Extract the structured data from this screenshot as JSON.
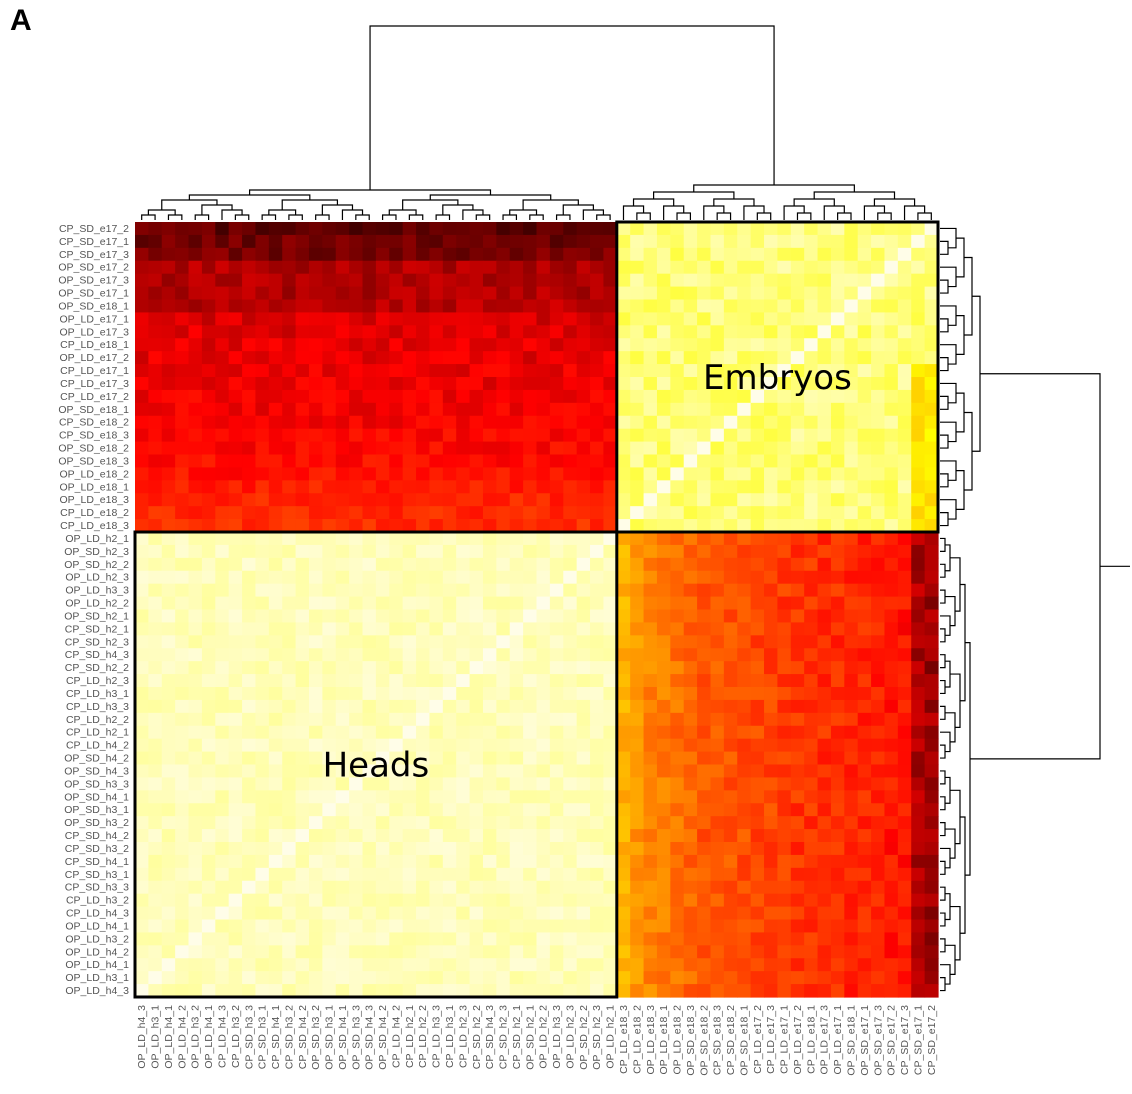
{
  "panel_letter": "A",
  "chart_data": {
    "type": "heatmap",
    "title": "",
    "row_labels": [
      "CP_SD_e17_2",
      "CP_SD_e17_1",
      "CP_SD_e17_3",
      "OP_SD_e17_2",
      "OP_SD_e17_3",
      "OP_SD_e17_1",
      "OP_SD_e18_1",
      "OP_LD_e17_1",
      "OP_LD_e17_3",
      "CP_LD_e18_1",
      "OP_LD_e17_2",
      "CP_LD_e17_1",
      "CP_LD_e17_3",
      "CP_LD_e17_2",
      "OP_SD_e18_1",
      "CP_SD_e18_2",
      "CP_SD_e18_3",
      "OP_SD_e18_2",
      "OP_SD_e18_3",
      "OP_LD_e18_2",
      "OP_LD_e18_1",
      "OP_LD_e18_3",
      "CP_LD_e18_2",
      "CP_LD_e18_3",
      "OP_LD_h2_1",
      "OP_SD_h2_3",
      "OP_SD_h2_2",
      "OP_LD_h2_3",
      "OP_LD_h3_3",
      "OP_LD_h2_2",
      "OP_SD_h2_1",
      "CP_SD_h2_1",
      "CP_SD_h2_3",
      "CP_SD_h4_3",
      "CP_SD_h2_2",
      "CP_LD_h2_3",
      "CP_LD_h3_1",
      "CP_LD_h3_3",
      "CP_LD_h2_2",
      "CP_LD_h2_1",
      "CP_LD_h4_2",
      "OP_SD_h4_2",
      "OP_SD_h4_3",
      "OP_SD_h3_3",
      "OP_SD_h4_1",
      "OP_SD_h3_1",
      "OP_SD_h3_2",
      "CP_SD_h4_2",
      "CP_SD_h3_2",
      "CP_SD_h4_1",
      "CP_SD_h3_1",
      "CP_SD_h3_3",
      "CP_LD_h3_2",
      "CP_LD_h4_3",
      "OP_LD_h4_1",
      "OP_LD_h3_2",
      "OP_LD_h4_2",
      "OP_LD_h4_1",
      "OP_LD_h3_1",
      "OP_LD_h4_3"
    ],
    "col_labels": [
      "OP_LD_h4_3",
      "OP_LD_h3_1",
      "OP_LD_h4_1",
      "OP_LD_h4_2",
      "OP_LD_h3_2",
      "OP_LD_h4_1",
      "CP_LD_h4_3",
      "CP_LD_h3_2",
      "CP_SD_h3_3",
      "CP_SD_h3_1",
      "CP_SD_h4_1",
      "CP_SD_h3_2",
      "CP_SD_h4_2",
      "OP_SD_h3_2",
      "OP_SD_h3_1",
      "OP_SD_h4_1",
      "OP_SD_h3_3",
      "OP_SD_h4_3",
      "OP_SD_h4_2",
      "CP_LD_h4_2",
      "CP_LD_h2_1",
      "CP_LD_h2_2",
      "CP_LD_h3_3",
      "CP_LD_h3_1",
      "CP_LD_h2_3",
      "CP_SD_h2_2",
      "CP_SD_h4_3",
      "CP_SD_h2_3",
      "CP_SD_h2_1",
      "OP_SD_h2_1",
      "OP_LD_h2_2",
      "OP_LD_h3_3",
      "OP_LD_h2_3",
      "OP_SD_h2_2",
      "OP_SD_h2_3",
      "OP_LD_h2_1",
      "CP_LD_e18_3",
      "CP_LD_e18_2",
      "OP_LD_e18_3",
      "OP_LD_e18_1",
      "OP_LD_e18_2",
      "OP_SD_e18_3",
      "OP_SD_e18_2",
      "CP_SD_e18_3",
      "CP_SD_e18_2",
      "OP_SD_e18_1",
      "CP_LD_e17_2",
      "CP_LD_e17_3",
      "CP_LD_e17_1",
      "OP_LD_e17_2",
      "CP_LD_e18_1",
      "OP_LD_e17_3",
      "OP_LD_e17_1",
      "OP_SD_e18_1",
      "OP_SD_e17_1",
      "OP_SD_e17_3",
      "OP_SD_e17_2",
      "CP_SD_e17_3",
      "CP_SD_e17_1",
      "CP_SD_e17_2"
    ],
    "n_embryo": 24,
    "n_heads": 36,
    "block_labels": {
      "embryos": "Embryos",
      "heads": "Heads"
    },
    "colorscale": [
      "#fffde8",
      "#ffff00",
      "#ff8c00",
      "#ff0000",
      "#3a0000"
    ],
    "colorscale_note": "",
    "row_profile_embryo_block": [
      1.0,
      0.96,
      0.94,
      0.8,
      0.8,
      0.8,
      0.78,
      0.7,
      0.68,
      0.66,
      0.66,
      0.64,
      0.64,
      0.62,
      0.62,
      0.6,
      0.58,
      0.58,
      0.56,
      0.54,
      0.5,
      0.48,
      0.46,
      0.44
    ],
    "col_profile_embryo_cols_heads_rows": [
      0.2,
      0.3,
      0.35,
      0.38,
      0.42,
      0.45,
      0.5,
      0.48,
      0.5,
      0.52,
      0.55,
      0.55,
      0.58,
      0.6,
      0.6,
      0.62,
      0.62,
      0.64,
      0.64,
      0.66,
      0.68,
      0.7,
      0.92,
      0.96
    ]
  }
}
